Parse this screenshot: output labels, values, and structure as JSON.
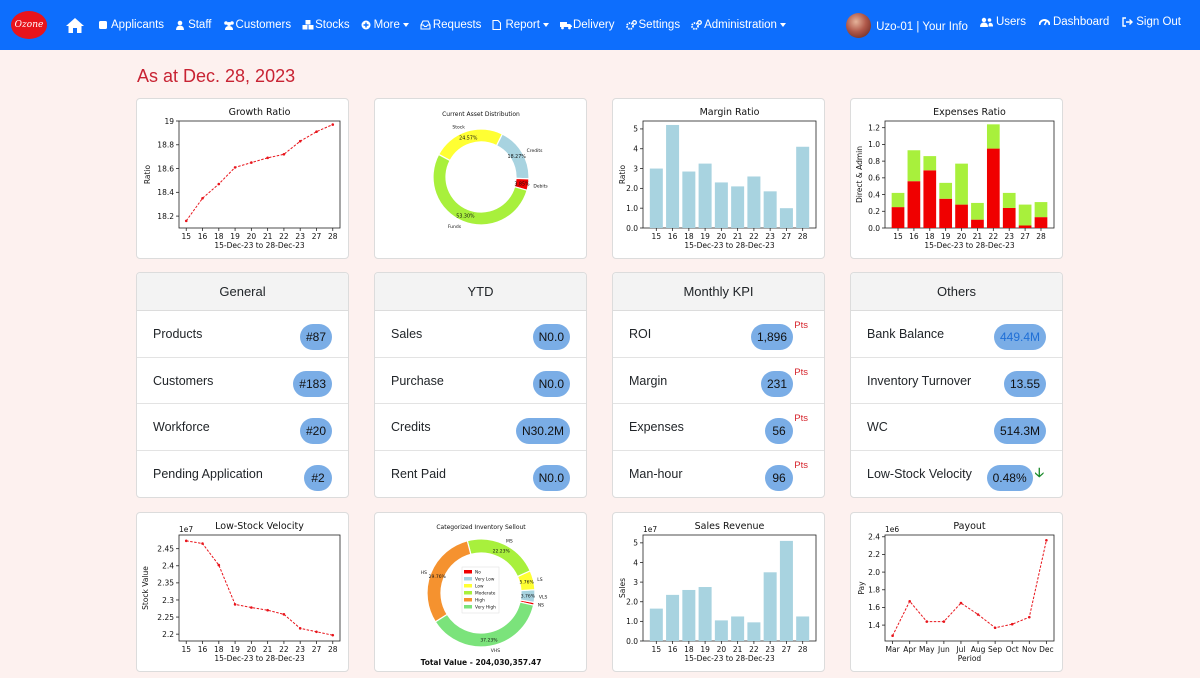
{
  "nav": {
    "logo_text": "Ozone",
    "items": [
      {
        "label": "Applicants",
        "icon": "edit-icon",
        "caret": false
      },
      {
        "label": "Staff",
        "icon": "user-icon",
        "caret": false
      },
      {
        "label": "Customers",
        "icon": "users-icon",
        "caret": false
      },
      {
        "label": "Stocks",
        "icon": "cubes-icon",
        "caret": false
      },
      {
        "label": "More",
        "icon": "plus-circle-icon",
        "caret": true
      },
      {
        "label": "Requests",
        "icon": "inbox-icon",
        "caret": false
      },
      {
        "label": "Report",
        "icon": "file-icon",
        "caret": true
      },
      {
        "label": "Delivery",
        "icon": "truck-icon",
        "caret": false
      },
      {
        "label": "Settings",
        "icon": "cogs-icon",
        "caret": false
      },
      {
        "label": "Administration",
        "icon": "cogs-icon",
        "caret": true
      }
    ],
    "right": {
      "user_label": "Uzo-01 | Your Info",
      "users_label": "Users",
      "dashboard_label": "Dashboard",
      "signout_label": "Sign Out"
    }
  },
  "date_heading": "As at Dec. 28, 2023",
  "kpi_panels": [
    {
      "title": "General",
      "rows": [
        {
          "label": "Products",
          "value": "#87"
        },
        {
          "label": "Customers",
          "value": "#183"
        },
        {
          "label": "Workforce",
          "value": "#20"
        },
        {
          "label": "Pending Application",
          "value": "#2"
        }
      ]
    },
    {
      "title": "YTD",
      "rows": [
        {
          "label": "Sales",
          "value": "N0.0"
        },
        {
          "label": "Purchase",
          "value": "N0.0"
        },
        {
          "label": "Credits",
          "value": "N30.2M"
        },
        {
          "label": "Rent Paid",
          "value": "N0.0"
        }
      ]
    },
    {
      "title": "Monthly KPI",
      "unit": "Pts",
      "rows": [
        {
          "label": "ROI",
          "value": "1,896"
        },
        {
          "label": "Margin",
          "value": "231"
        },
        {
          "label": "Expenses",
          "value": "56"
        },
        {
          "label": "Man-hour",
          "value": "96"
        }
      ]
    },
    {
      "title": "Others",
      "rows": [
        {
          "label": "Bank Balance",
          "value": "449.4M"
        },
        {
          "label": "Inventory Turnover",
          "value": "13.55"
        },
        {
          "label": "WC",
          "value": "514.3M"
        },
        {
          "label": "Low-Stock Velocity",
          "value": "0.48%"
        }
      ]
    }
  ],
  "colors": {
    "navbar": "#0d6efd",
    "pill": "#7aade6",
    "heading": "#c82333",
    "bar": "#a8d3e0",
    "red": "#f00000",
    "green": "#a8f03c",
    "yellow": "#ffff33"
  },
  "chart_data": [
    {
      "type": "line",
      "title": "Growth Ratio",
      "xlabel": "15-Dec-23 to 28-Dec-23",
      "ylabel": "Ratio",
      "x": [
        "15",
        "16",
        "18",
        "19",
        "20",
        "21",
        "22",
        "23",
        "27",
        "28"
      ],
      "y": [
        18.16,
        18.35,
        18.47,
        18.61,
        18.65,
        18.69,
        18.72,
        18.83,
        18.91,
        18.97
      ],
      "ylim": [
        18.1,
        19.0
      ],
      "yticks": [
        18.2,
        18.4,
        18.6,
        18.8,
        19.0
      ]
    },
    {
      "type": "pie",
      "title": "Current Asset Distribution",
      "slices": [
        {
          "label": "Stock",
          "pct": "24.57%",
          "value": 24.57,
          "color": "#ffff33"
        },
        {
          "label": "Credits",
          "pct": "18.27%",
          "value": 18.27,
          "color": "#a8d3e0"
        },
        {
          "label": "Debits",
          "pct": "3.85%",
          "value": 3.85,
          "color": "#f00000"
        },
        {
          "label": "Funds",
          "pct": "53.30%",
          "value": 53.3,
          "color": "#a8f03c"
        }
      ]
    },
    {
      "type": "bar",
      "title": "Margin Ratio",
      "xlabel": "15-Dec-23 to 28-Dec-23",
      "ylabel": "Ratio",
      "categories": [
        "15",
        "16",
        "18",
        "19",
        "20",
        "21",
        "22",
        "23",
        "27",
        "28"
      ],
      "values": [
        3.0,
        5.2,
        2.85,
        3.25,
        2.3,
        2.1,
        2.6,
        1.85,
        1.0,
        4.1
      ],
      "ylim": [
        0,
        5.4
      ],
      "yticks": [
        0,
        1,
        2,
        3,
        4,
        5
      ]
    },
    {
      "type": "bar",
      "title": "Expenses Ratio",
      "ylabel": "Direct & Admin",
      "xlabel": "15-Dec-23 to 28-Dec-23",
      "categories": [
        "15",
        "16",
        "18",
        "19",
        "20",
        "21",
        "22",
        "23",
        "27",
        "28"
      ],
      "series": [
        {
          "values": [
            0.25,
            0.56,
            0.69,
            0.35,
            0.28,
            0.1,
            0.95,
            0.24,
            0.03,
            0.13
          ],
          "color": "#f00000"
        },
        {
          "values": [
            0.17,
            0.37,
            0.17,
            0.19,
            0.49,
            0.2,
            0.29,
            0.18,
            0.25,
            0.18
          ],
          "color": "#a8f03c"
        }
      ],
      "ylim": [
        0,
        1.28
      ],
      "yticks": [
        0.0,
        0.2,
        0.4,
        0.6,
        0.8,
        1.0,
        1.2
      ]
    },
    {
      "type": "line",
      "title": "Low-Stock Velocity",
      "xlabel": "15-Dec-23 to 28-Dec-23",
      "ylabel": "Stock Value",
      "offset_label": "1e7",
      "x": [
        "15",
        "16",
        "18",
        "19",
        "20",
        "21",
        "22",
        "23",
        "27",
        "28"
      ],
      "y": [
        2.473,
        2.465,
        2.402,
        2.287,
        2.278,
        2.27,
        2.258,
        2.217,
        2.207,
        2.197
      ],
      "ylim": [
        2.18,
        2.49
      ],
      "yticks": [
        2.2,
        2.25,
        2.3,
        2.35,
        2.4,
        2.45
      ]
    },
    {
      "type": "pie",
      "title": "Categorized Inventory Sellout",
      "total_label": "Total Value - 204,030,357.47",
      "slices": [
        {
          "label": "NS",
          "pct": "",
          "value": 0.8,
          "color": "#f00000",
          "legend": "No"
        },
        {
          "label": "VLS",
          "pct": "3.76%",
          "value": 3.76,
          "color": "#a8d3e0",
          "legend": "Very Low"
        },
        {
          "label": "LS",
          "pct": "5.76%",
          "value": 5.76,
          "color": "#ffff33",
          "legend": "Low"
        },
        {
          "label": "MS",
          "pct": "22.23%",
          "value": 22.23,
          "color": "#a8f03c",
          "legend": "Moderate"
        },
        {
          "label": "HS",
          "pct": "29.76%",
          "value": 29.76,
          "color": "#f5922f",
          "legend": "High"
        },
        {
          "label": "VHS",
          "pct": "37.23%",
          "value": 37.23,
          "color": "#7be37b",
          "legend": "Very High"
        }
      ]
    },
    {
      "type": "bar",
      "title": "Sales Revenue",
      "xlabel": "15-Dec-23 to 28-Dec-23",
      "ylabel": "Sales",
      "offset_label": "1e7",
      "categories": [
        "15",
        "16",
        "18",
        "19",
        "20",
        "21",
        "22",
        "23",
        "27",
        "28"
      ],
      "values": [
        1.65,
        2.35,
        2.6,
        2.75,
        1.05,
        1.25,
        0.95,
        3.5,
        5.1,
        1.25
      ],
      "ylim": [
        0,
        5.4
      ],
      "yticks": [
        0,
        1,
        2,
        3,
        4,
        5
      ]
    },
    {
      "type": "line",
      "title": "Payout",
      "xlabel": "Period",
      "ylabel": "Pay",
      "offset_label": "1e6",
      "x": [
        "Mar",
        "Apr",
        "May",
        "Jun",
        "Jul",
        "Aug",
        "Sep",
        "Oct",
        "Nov",
        "Dec"
      ],
      "y": [
        1.28,
        1.67,
        1.44,
        1.44,
        1.65,
        1.52,
        1.37,
        1.41,
        1.49,
        2.36
      ],
      "ylim": [
        1.22,
        2.42
      ],
      "yticks": [
        1.4,
        1.6,
        1.8,
        2.0,
        2.2,
        2.4
      ]
    }
  ]
}
